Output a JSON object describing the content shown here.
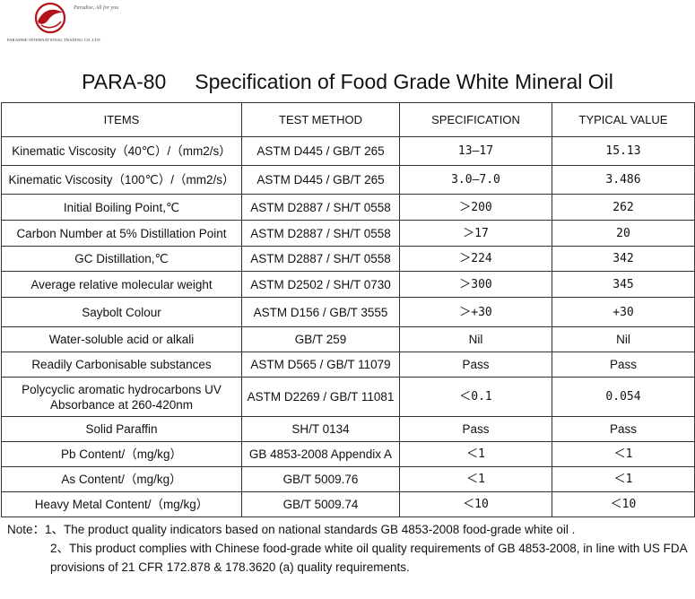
{
  "logo": {
    "tagline": "Paradise, All for you",
    "company": "PARADISE INTERNATIONAL TRADING CO.,LTD."
  },
  "title": "PARA-80     Specification of Food Grade White Mineral Oil",
  "table": {
    "headers": [
      "ITEMS",
      "TEST METHOD",
      "SPECIFICATION",
      "TYPICAL VALUE"
    ],
    "rows": [
      {
        "item": "Kinematic Viscosity（40℃）/（mm2/s）",
        "method": "ASTM D445 / GB/T 265",
        "spec": "13—17",
        "typical": "15.13"
      },
      {
        "item": "Kinematic Viscosity（100℃）/（mm2/s）",
        "method": "ASTM D445 / GB/T 265",
        "spec": "3.0—7.0",
        "typical": "3.486"
      },
      {
        "item": "Initial Boiling Point,℃",
        "method": "ASTM D2887 / SH/T 0558",
        "spec": "＞200",
        "typical": "262"
      },
      {
        "item": "Carbon Number at 5% Distillation Point",
        "method": "ASTM D2887 / SH/T 0558",
        "spec": "＞17",
        "typical": "20"
      },
      {
        "item": "GC Distillation,℃",
        "method": "ASTM D2887 / SH/T 0558",
        "spec": "＞224",
        "typical": "342"
      },
      {
        "item": "Average relative molecular weight",
        "method": "ASTM D2502 / SH/T 0730",
        "spec": "＞300",
        "typical": "345"
      },
      {
        "item": "Saybolt Colour",
        "method": "ASTM D156 / GB/T 3555",
        "spec": "＞+30",
        "typical": "+30"
      },
      {
        "item": "Water-soluble acid or alkali",
        "method": "GB/T 259",
        "spec": "Nil",
        "typical": "Nil"
      },
      {
        "item": "Readily Carbonisable substances",
        "method": "ASTM D565 / GB/T 11079",
        "spec": "Pass",
        "typical": "Pass"
      },
      {
        "item": "Polycyclic aromatic hydrocarbons UV Absorbance at 260-420nm",
        "method": "ASTM D2269 / GB/T 11081",
        "spec": "＜0.1",
        "typical": "0.054"
      },
      {
        "item": "Solid Paraffin",
        "method": "SH/T 0134",
        "spec": "Pass",
        "typical": "Pass"
      },
      {
        "item": "Pb Content/（mg/kg）",
        "method": "GB 4853-2008 Appendix A",
        "spec": "＜1",
        "typical": "＜1"
      },
      {
        "item": "As Content/（mg/kg）",
        "method": "GB/T 5009.76",
        "spec": "＜1",
        "typical": "＜1"
      },
      {
        "item": "Heavy Metal Content/（mg/kg）",
        "method": "GB/T 5009.74",
        "spec": "＜10",
        "typical": "＜10"
      }
    ]
  },
  "notes": {
    "line1": "Note：1、The product quality indicators based on national standards GB 4853-2008 food-grade white oil .",
    "line2": "2、This product complies with Chinese food-grade white oil quality requirements of GB 4853-2008, in line with US FDA provisions of 21 CFR 172.878 & 178.3620 (a) quality requirements."
  }
}
